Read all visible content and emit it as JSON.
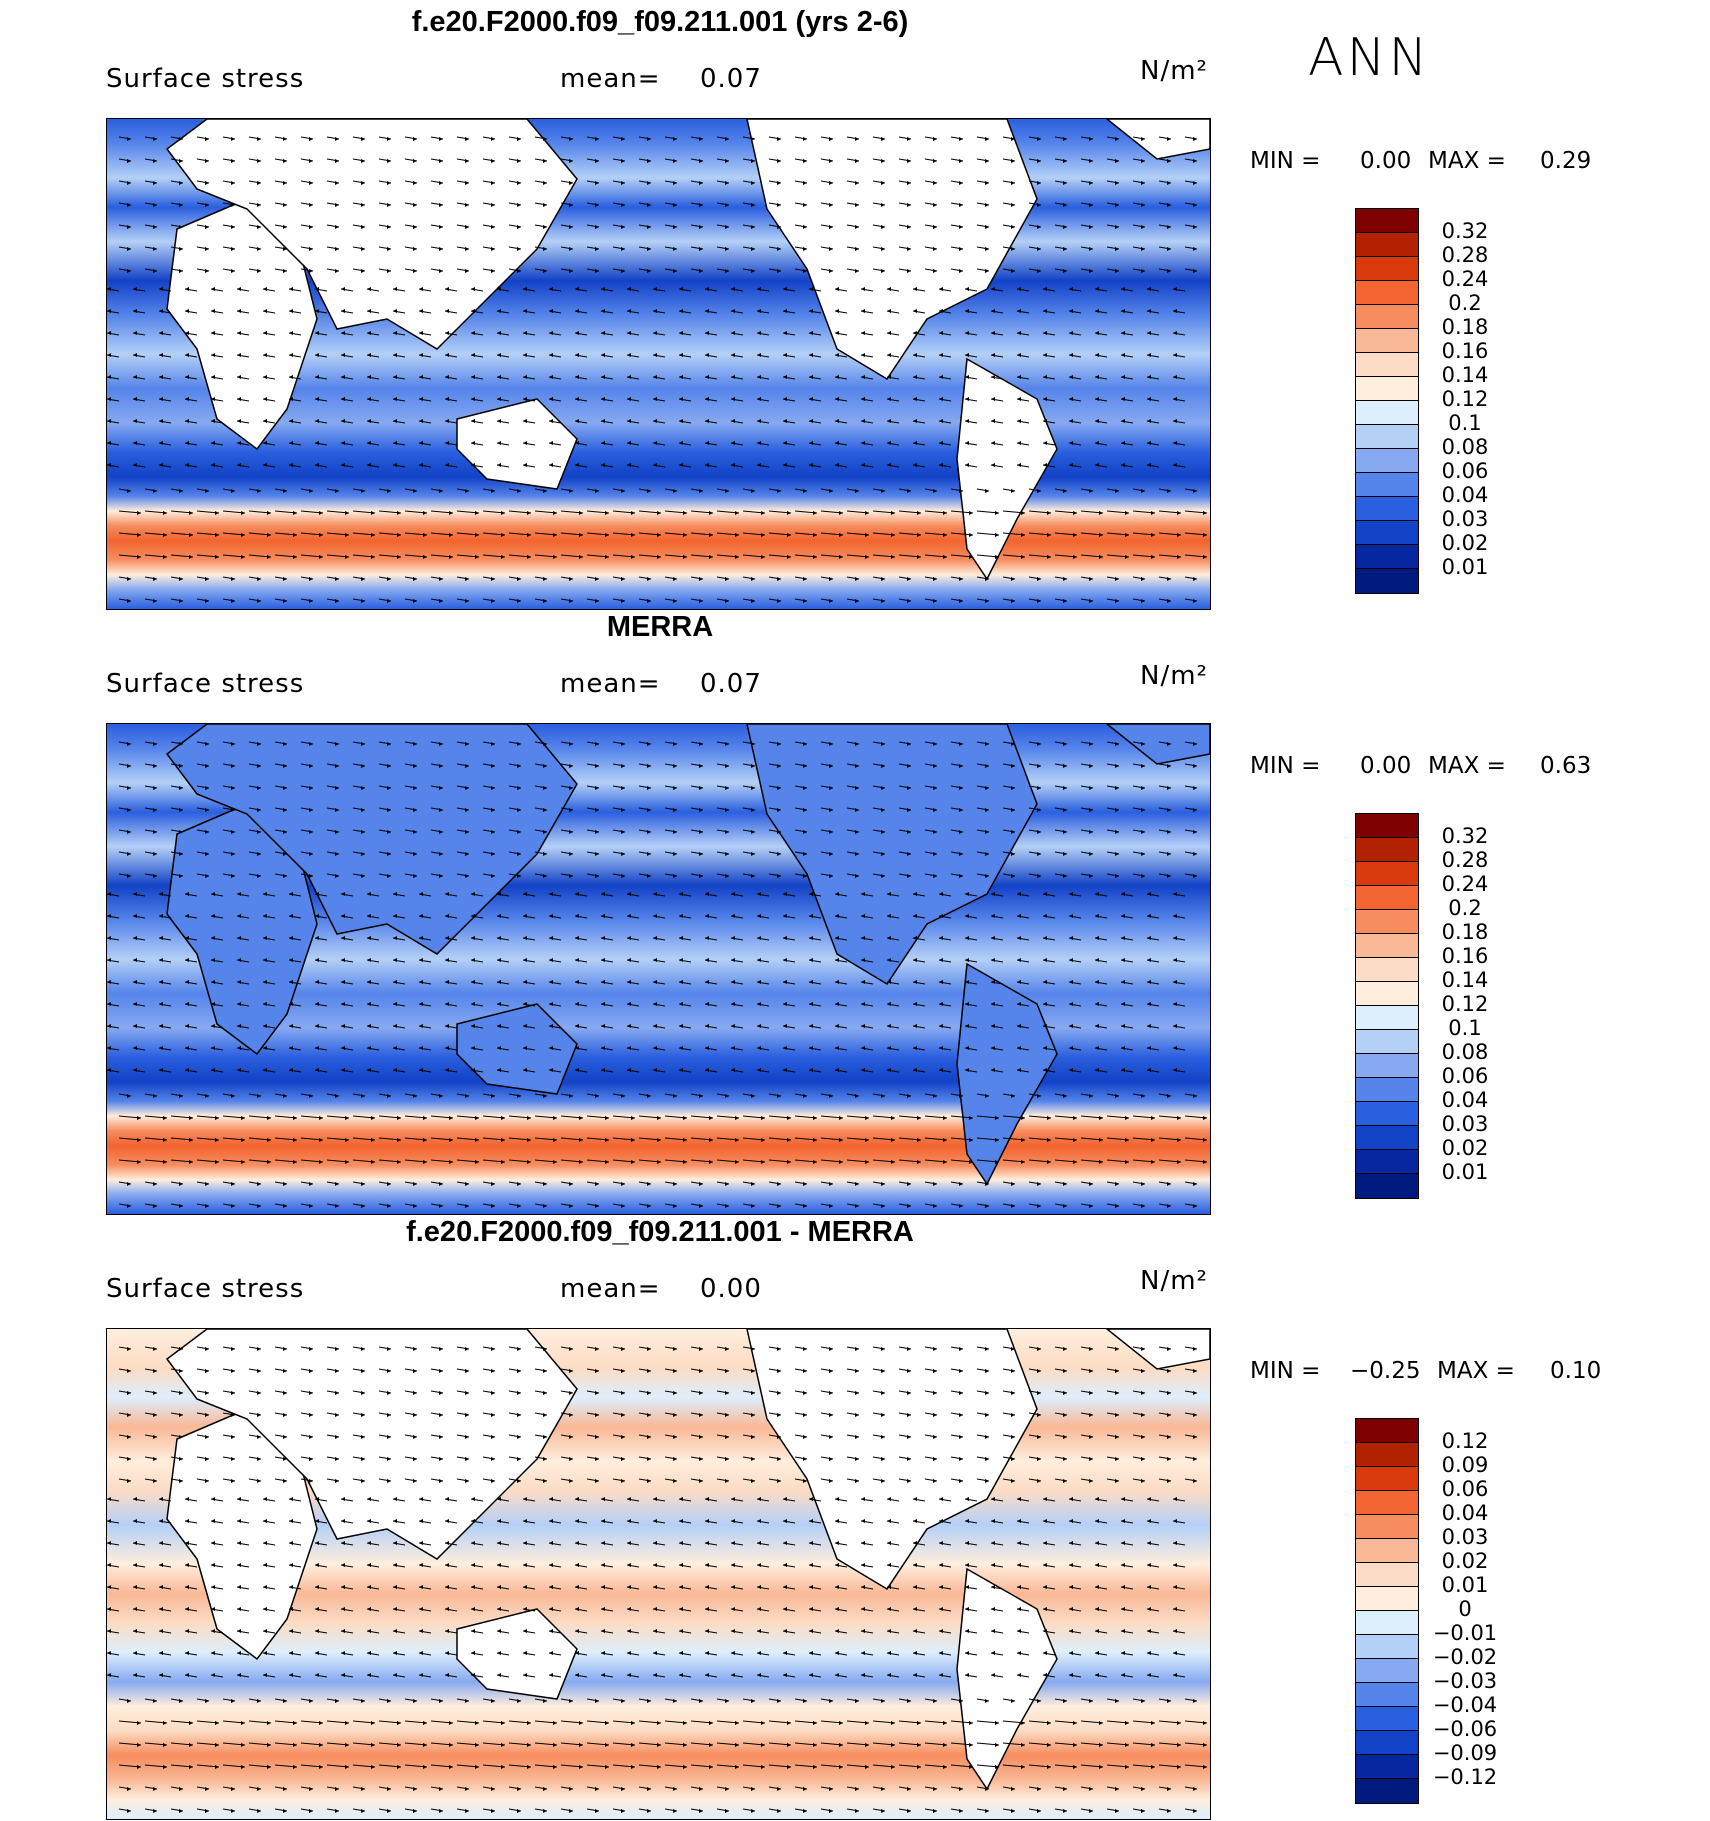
{
  "season": "ANN",
  "chart_data": [
    {
      "type": "heatmap",
      "title": "f.e20.F2000.f09_f09.211.001 (yrs 2-6)",
      "field_label": "Surface stress",
      "mean_label": "mean=",
      "mean_value": "0.07",
      "units": "N/m²",
      "min_label": "MIN =",
      "min_value": "0.00",
      "max_label": "MAX =",
      "max_value": "0.29",
      "colorbar": {
        "levels": [
          "0.32",
          "0.28",
          "0.24",
          "0.2",
          "0.18",
          "0.16",
          "0.14",
          "0.12",
          "0.1",
          "0.08",
          "0.06",
          "0.04",
          "0.03",
          "0.02",
          "0.01"
        ],
        "colors": [
          "#7f0000",
          "#b22200",
          "#d83a0c",
          "#f26430",
          "#f78d5f",
          "#f9b896",
          "#fcdcc4",
          "#ffeedd",
          "#ddeefc",
          "#b4d0f7",
          "#86a9f1",
          "#5584ea",
          "#2a5fdf",
          "#1242c6",
          "#0627a0",
          "#001a80"
        ]
      }
    },
    {
      "type": "heatmap",
      "title": "MERRA",
      "field_label": "Surface stress",
      "mean_label": "mean=",
      "mean_value": "0.07",
      "units": "N/m²",
      "min_label": "MIN =",
      "min_value": "0.00",
      "max_label": "MAX =",
      "max_value": "0.63",
      "colorbar": {
        "levels": [
          "0.32",
          "0.28",
          "0.24",
          "0.2",
          "0.18",
          "0.16",
          "0.14",
          "0.12",
          "0.1",
          "0.08",
          "0.06",
          "0.04",
          "0.03",
          "0.02",
          "0.01"
        ],
        "colors": [
          "#7f0000",
          "#b22200",
          "#d83a0c",
          "#f26430",
          "#f78d5f",
          "#f9b896",
          "#fcdcc4",
          "#ffeedd",
          "#ddeefc",
          "#b4d0f7",
          "#86a9f1",
          "#5584ea",
          "#2a5fdf",
          "#1242c6",
          "#0627a0",
          "#001a80"
        ]
      }
    },
    {
      "type": "heatmap",
      "title": "f.e20.F2000.f09_f09.211.001 - MERRA",
      "field_label": "Surface stress",
      "mean_label": "mean=",
      "mean_value": "0.00",
      "units": "N/m²",
      "min_label": "MIN =",
      "min_value": "−0.25",
      "max_label": "MAX =",
      "max_value": "0.10",
      "colorbar": {
        "levels": [
          "0.12",
          "0.09",
          "0.06",
          "0.04",
          "0.03",
          "0.02",
          "0.01",
          "0",
          "−0.01",
          "−0.02",
          "−0.03",
          "−0.04",
          "−0.06",
          "−0.09",
          "−0.12"
        ],
        "colors": [
          "#7f0000",
          "#b22200",
          "#d83a0c",
          "#f26430",
          "#f78d5f",
          "#f9b896",
          "#fcdcc4",
          "#ffeedd",
          "#ddeefc",
          "#b4d0f7",
          "#86a9f1",
          "#5584ea",
          "#2a5fdf",
          "#1242c6",
          "#0627a0",
          "#001a80"
        ]
      }
    }
  ]
}
